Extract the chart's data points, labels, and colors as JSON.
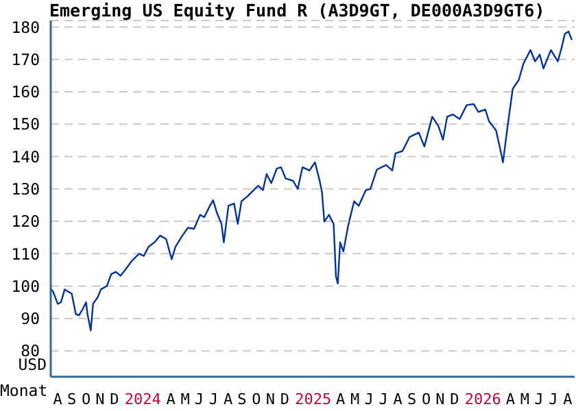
{
  "chart_data": {
    "type": "line",
    "title": "Emerging US Equity Fund R (A3D9GT, DE000A3D9GT6)",
    "xlabel": "Monat",
    "ylabel": "USD",
    "x": [
      "2023-08-01",
      "2023-08-06",
      "2023-08-16",
      "2023-08-23",
      "2023-08-31",
      "2023-09-07",
      "2023-09-15",
      "2023-09-24",
      "2023-10-01",
      "2023-10-09",
      "2023-10-16",
      "2023-10-19",
      "2023-10-26",
      "2023-10-31",
      "2023-11-10",
      "2023-11-17",
      "2023-11-30",
      "2023-12-09",
      "2023-12-19",
      "2023-12-29",
      "2024-01-08",
      "2024-01-23",
      "2024-02-07",
      "2024-02-17",
      "2024-02-27",
      "2024-03-11",
      "2024-03-23",
      "2024-04-05",
      "2024-04-17",
      "2024-04-25",
      "2024-05-10",
      "2024-05-22",
      "2024-06-04",
      "2024-06-17",
      "2024-06-26",
      "2024-07-08",
      "2024-07-15",
      "2024-07-23",
      "2024-08-02",
      "2024-08-07",
      "2024-08-17",
      "2024-08-29",
      "2024-09-06",
      "2024-09-14",
      "2024-09-26",
      "2024-10-10",
      "2024-10-20",
      "2024-10-30",
      "2024-11-07",
      "2024-11-17",
      "2024-11-29",
      "2024-12-08",
      "2024-12-18",
      "2025-01-03",
      "2025-01-13",
      "2025-01-23",
      "2025-02-07",
      "2025-02-19",
      "2025-03-01",
      "2025-03-06",
      "2025-03-11",
      "2025-03-21",
      "2025-03-31",
      "2025-04-05",
      "2025-04-09",
      "2025-04-14",
      "2025-04-21",
      "2025-05-01",
      "2025-05-14",
      "2025-05-24",
      "2025-06-08",
      "2025-06-18",
      "2025-07-02",
      "2025-07-22",
      "2025-08-04",
      "2025-08-11",
      "2025-08-26",
      "2025-09-10",
      "2025-09-30",
      "2025-10-12",
      "2025-10-29",
      "2025-11-11",
      "2025-11-21",
      "2025-11-30",
      "2025-12-12",
      "2025-12-27",
      "2026-01-11",
      "2026-01-26",
      "2026-02-05",
      "2026-02-20",
      "2026-02-28",
      "2026-03-15",
      "2026-03-25",
      "2026-03-30",
      "2026-04-09",
      "2026-04-20",
      "2026-05-03",
      "2026-05-13",
      "2026-05-28",
      "2026-06-07",
      "2026-06-17",
      "2026-06-25",
      "2026-07-11",
      "2026-07-26",
      "2026-08-03",
      "2026-08-10",
      "2026-08-18",
      "2026-08-25"
    ],
    "series": [
      {
        "color": "#0033a0",
        "values": [
          99.2,
          98.3,
          94.5,
          95,
          99,
          98.3,
          97.7,
          91.3,
          91,
          93,
          95,
          91.3,
          86.3,
          94.5,
          96.6,
          99,
          100.1,
          103.7,
          104.4,
          103.2,
          105,
          107.9,
          110,
          109.3,
          112.1,
          113.5,
          115.6,
          114.5,
          108.3,
          112.1,
          115.6,
          118,
          117.7,
          122,
          121.3,
          124.8,
          126.5,
          122.7,
          119.2,
          113.5,
          124.8,
          125.5,
          119.2,
          126.2,
          127.6,
          129.6,
          131,
          129.6,
          134.6,
          131.8,
          136.3,
          136.7,
          133.2,
          132.5,
          130,
          136.7,
          135.7,
          138.2,
          132.5,
          129,
          119.9,
          122,
          119.2,
          103,
          100.8,
          113.5,
          110.7,
          118.5,
          126.2,
          124.8,
          129.6,
          130,
          136,
          137.4,
          135.7,
          141,
          141.7,
          146,
          147.4,
          143.1,
          152.3,
          149.5,
          145.2,
          152.3,
          153,
          151.6,
          155.9,
          156.2,
          153.8,
          154.5,
          150.9,
          148.1,
          141.7,
          138.2,
          149.5,
          160.9,
          163.7,
          168.7,
          172.9,
          169.4,
          171.5,
          167.2,
          172.9,
          169.4,
          173.6,
          177.9,
          178.6,
          176
        ]
      }
    ],
    "xlim": [
      "2023-08-01",
      "2026-08-31"
    ],
    "xticks": [
      {
        "value": "2023-08-16",
        "label": "A"
      },
      {
        "value": "2023-09-15",
        "label": "S"
      },
      {
        "value": "2023-10-16",
        "label": "O"
      },
      {
        "value": "2023-11-15",
        "label": "N"
      },
      {
        "value": "2023-12-16",
        "label": "D"
      },
      {
        "value": "2024-02-15",
        "label": "2024"
      },
      {
        "value": "2024-04-15",
        "label": "A"
      },
      {
        "value": "2024-05-16",
        "label": "M"
      },
      {
        "value": "2024-06-15",
        "label": "J"
      },
      {
        "value": "2024-07-16",
        "label": "J"
      },
      {
        "value": "2024-08-16",
        "label": "A"
      },
      {
        "value": "2024-09-15",
        "label": "S"
      },
      {
        "value": "2024-10-16",
        "label": "O"
      },
      {
        "value": "2024-11-15",
        "label": "N"
      },
      {
        "value": "2024-12-16",
        "label": "D"
      },
      {
        "value": "2025-02-15",
        "label": "2025"
      },
      {
        "value": "2025-04-15",
        "label": "A"
      },
      {
        "value": "2025-05-16",
        "label": "M"
      },
      {
        "value": "2025-06-15",
        "label": "J"
      },
      {
        "value": "2025-07-16",
        "label": "J"
      },
      {
        "value": "2025-08-16",
        "label": "A"
      },
      {
        "value": "2025-09-15",
        "label": "S"
      },
      {
        "value": "2025-10-16",
        "label": "O"
      },
      {
        "value": "2025-11-15",
        "label": "N"
      },
      {
        "value": "2025-12-16",
        "label": "D"
      },
      {
        "value": "2026-02-15",
        "label": "2026"
      },
      {
        "value": "2026-04-15",
        "label": "A"
      },
      {
        "value": "2026-05-16",
        "label": "M"
      },
      {
        "value": "2026-06-15",
        "label": "J"
      },
      {
        "value": "2026-07-16",
        "label": "J"
      },
      {
        "value": "2026-08-16",
        "label": "A"
      }
    ],
    "ylim": [
      72,
      182
    ],
    "yticks": [
      80,
      90,
      100,
      110,
      120,
      130,
      140,
      150,
      160,
      170,
      180
    ],
    "grid": "y",
    "marker": "none",
    "line_style": "solid"
  }
}
